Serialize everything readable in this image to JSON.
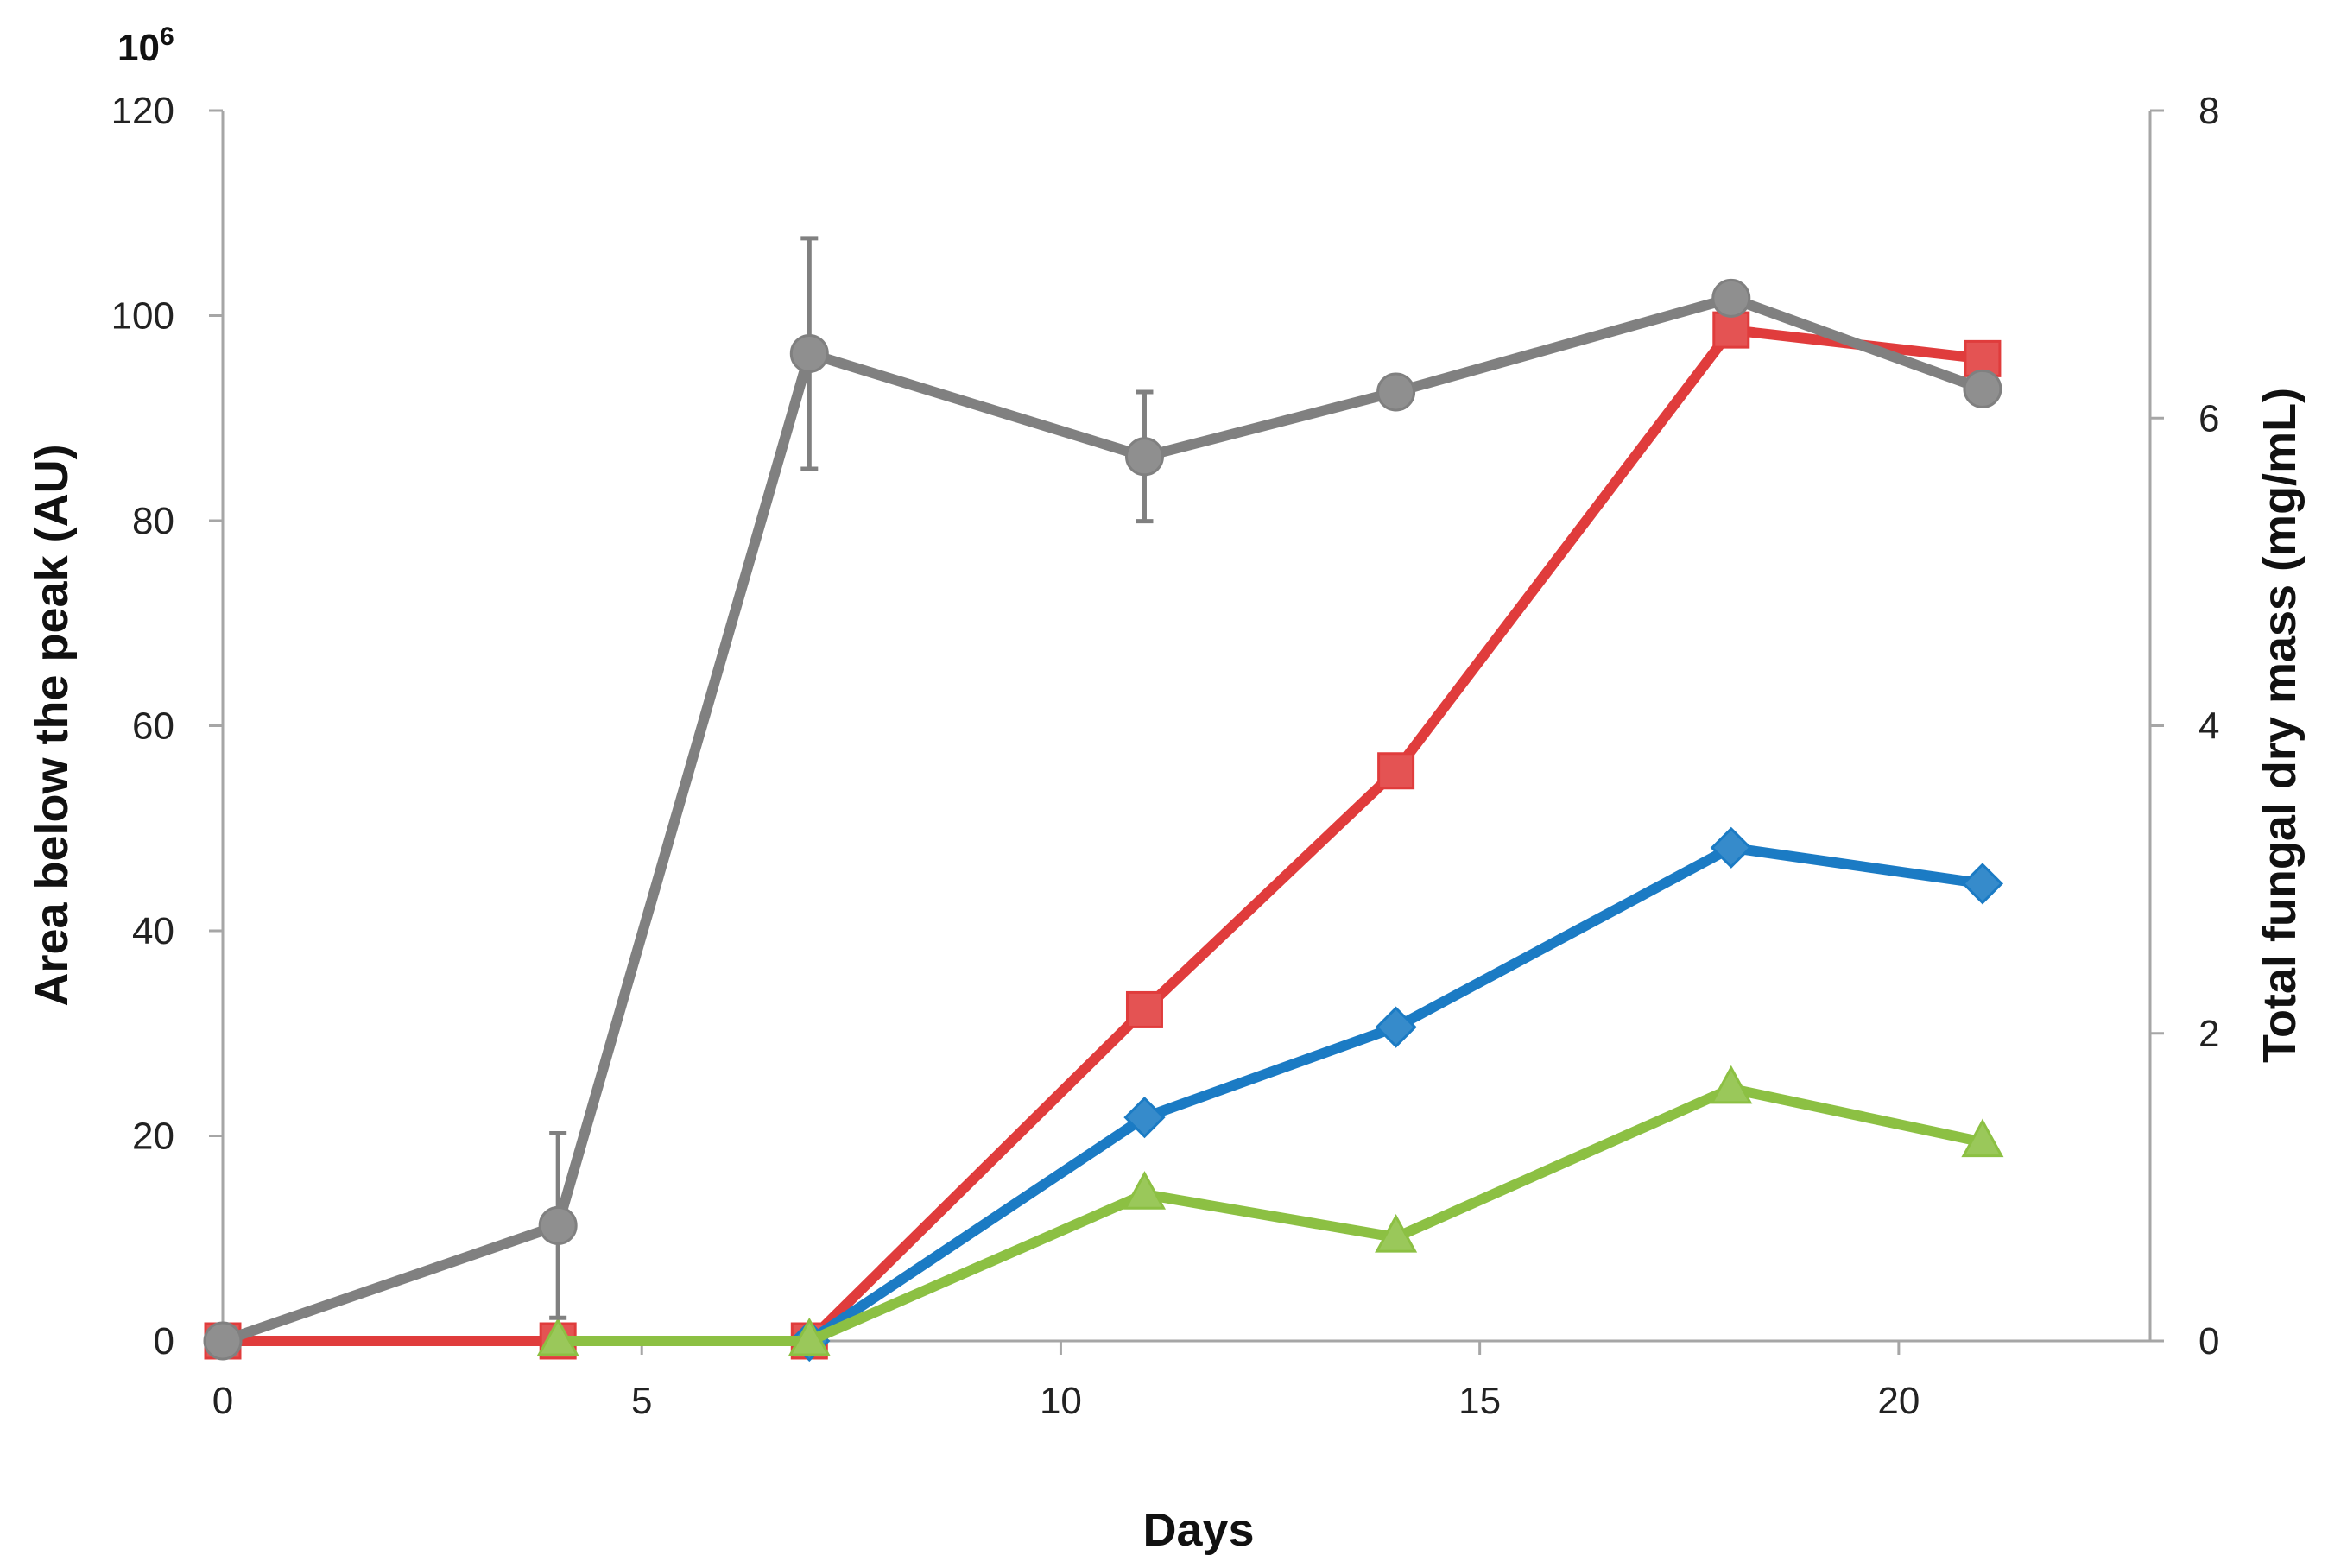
{
  "chart_data": {
    "type": "line",
    "title": "",
    "xlabel": "Days",
    "ylabel": "Area below the peak (AU)",
    "y2label": "Total fungal dry mass (mg/mL)",
    "y_multiplier_label": "10",
    "y_multiplier_exp": "6",
    "xlim": [
      0,
      23
    ],
    "ylim": [
      0,
      120
    ],
    "y2lim": [
      0,
      8
    ],
    "xticks": [
      "0",
      "5",
      "10",
      "15",
      "20"
    ],
    "xtick_values": [
      0,
      5,
      10,
      15,
      20
    ],
    "yticks": [
      "0",
      "20",
      "40",
      "60",
      "80",
      "100",
      "120"
    ],
    "ytick_values": [
      0,
      20,
      40,
      60,
      80,
      100,
      120
    ],
    "y2ticks": [
      "0",
      "2",
      "4",
      "6",
      "8"
    ],
    "y2tick_values": [
      0,
      2,
      4,
      6,
      8
    ],
    "grid": false,
    "legend": "none",
    "series": [
      {
        "axis": "left",
        "color": "#e03c3c",
        "marker": "square",
        "x": [
          0,
          4,
          7,
          11,
          14,
          18,
          21
        ],
        "values": [
          0,
          0,
          0,
          32.3,
          55.6,
          98.6,
          95.8
        ]
      },
      {
        "axis": "left",
        "color": "#1b7bc4",
        "marker": "diamond",
        "x": [
          7,
          11,
          14,
          18,
          21
        ],
        "values": [
          0,
          21.8,
          30.6,
          48.1,
          44.6
        ]
      },
      {
        "axis": "left",
        "color": "#8cc043",
        "marker": "triangle",
        "x": [
          4,
          7,
          11,
          14,
          18,
          21
        ],
        "values": [
          0,
          0,
          14.3,
          10.1,
          24.6,
          19.4
        ]
      },
      {
        "axis": "right",
        "color": "#808080",
        "marker": "circle",
        "x": [
          0,
          4,
          7,
          11,
          14,
          18,
          21
        ],
        "values": [
          0,
          0.75,
          6.42,
          5.75,
          6.17,
          6.78,
          6.19
        ],
        "error": [
          0,
          0.6,
          0.75,
          0.42,
          0,
          0,
          0
        ]
      }
    ]
  }
}
